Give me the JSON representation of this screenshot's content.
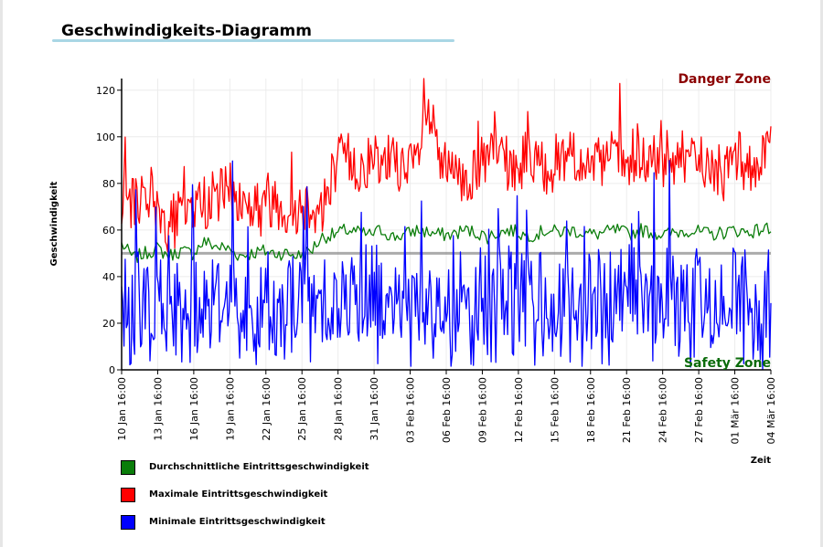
{
  "title": "Geschwindigkeits-Diagramm",
  "colors": {
    "average": "#0a7d0a",
    "maximum": "#ff0000",
    "minimum": "#0000ff",
    "threshold": "#8f8f8f",
    "title_rule": "#a9d6e5"
  },
  "chart_data": {
    "type": "line",
    "ylabel": "Geschwindigkeit",
    "xlabel": "Zeit",
    "ylim": [
      0,
      125
    ],
    "yticks": [
      0,
      20,
      40,
      60,
      80,
      100,
      120
    ],
    "x_range": [
      "2024-01-10 16:00",
      "2024-03-04 16:00"
    ],
    "x_tick_labels": [
      "10 Jan 16:00",
      "13 Jan 16:00",
      "16 Jan 16:00",
      "19 Jan 16:00",
      "22 Jan 16:00",
      "25 Jan 16:00",
      "28 Jan 16:00",
      "31 Jan 16:00",
      "03 Feb 16:00",
      "06 Feb 16:00",
      "09 Feb 16:00",
      "12 Feb 16:00",
      "15 Feb 16:00",
      "18 Feb 16:00",
      "21 Feb 16:00",
      "24 Feb 16:00",
      "27 Feb 16:00",
      "01 Mär 16:00",
      "04 Mär 16:00"
    ],
    "grid": true,
    "legend_position": "bottom-left",
    "threshold_line": 50,
    "annotations": {
      "danger": "Danger Zone",
      "safety": "Safety Zone"
    },
    "series": [
      {
        "name": "Durchschnittliche Eintrittsgeschwindigkeit",
        "color": "#0a7d0a",
        "values": [
          54,
          48,
          50,
          52,
          49,
          51,
          50,
          55,
          53,
          52,
          49,
          50,
          51,
          50,
          50,
          49,
          51,
          57,
          58,
          60,
          59,
          58,
          60,
          57,
          58,
          60,
          59,
          58,
          58,
          60,
          59,
          57,
          59,
          60,
          58,
          58,
          60,
          59,
          60,
          59,
          58,
          59,
          60,
          58,
          60,
          59,
          58,
          59,
          60,
          59,
          58,
          59,
          60,
          59,
          60,
          61
        ]
      },
      {
        "name": "Maximale Eintrittsgeschwindigkeit",
        "color": "#ff0000",
        "values": [
          72,
          70,
          78,
          68,
          62,
          66,
          70,
          72,
          74,
          78,
          72,
          70,
          69,
          74,
          68,
          70,
          72,
          68,
          88,
          92,
          86,
          90,
          84,
          95,
          82,
          90,
          110,
          88,
          84,
          80,
          86,
          90,
          94,
          85,
          88,
          92,
          86,
          90,
          94,
          88,
          86,
          90,
          92,
          86,
          88,
          90,
          86,
          92,
          88,
          90,
          86,
          84,
          92,
          88,
          86,
          95
        ]
      },
      {
        "name": "Minimale Eintrittsgeschwindigkeit",
        "color": "#0000ff",
        "values": [
          30,
          25,
          35,
          28,
          22,
          30,
          26,
          32,
          28,
          34,
          24,
          20,
          30,
          28,
          26,
          32,
          28,
          34,
          30,
          28,
          32,
          36,
          30,
          28,
          34,
          30,
          32,
          28,
          38,
          34,
          30,
          32,
          36,
          30,
          28,
          34,
          30,
          26,
          32,
          28,
          30,
          34,
          28,
          32,
          30,
          26,
          34,
          30,
          28,
          32,
          30,
          28,
          34,
          30,
          28,
          30
        ]
      }
    ]
  }
}
